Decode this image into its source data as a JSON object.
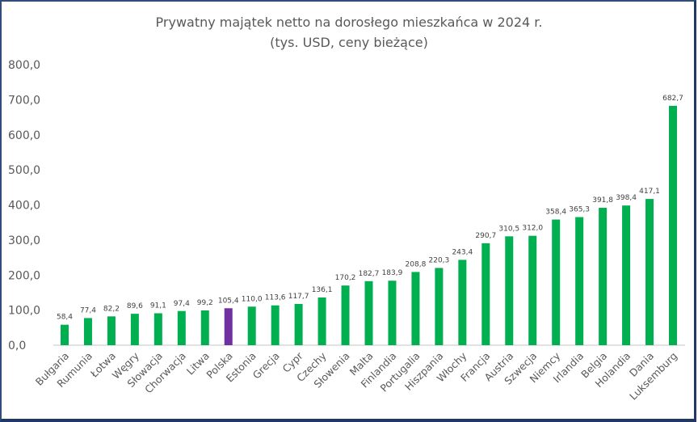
{
  "chart_data": {
    "type": "bar",
    "title": "Prywatny majątek netto na dorosłego mieszkańca w 2024 r.",
    "subtitle": "(tys. USD, ceny bieżące)",
    "xlabel": "",
    "ylabel": "",
    "ylim": [
      0,
      800
    ],
    "yticks": [
      "0,0",
      "100,0",
      "200,0",
      "300,0",
      "400,0",
      "500,0",
      "600,0",
      "700,0",
      "800,0"
    ],
    "grid": false,
    "categories": [
      "Bułgaria",
      "Rumunia",
      "Łotwa",
      "Węgry",
      "Słowacja",
      "Chorwacja",
      "Litwa",
      "Polska",
      "Estonia",
      "Grecja",
      "Cypr",
      "Czechy",
      "Słowenia",
      "Malta",
      "Finlandia",
      "Portugalia",
      "Hiszpania",
      "Włochy",
      "Francja",
      "Austria",
      "Szwecja",
      "Niemcy",
      "Irlandia",
      "Belgia",
      "Holandia",
      "Dania",
      "Luksemburg"
    ],
    "values": [
      58.4,
      77.4,
      82.2,
      89.6,
      91.1,
      97.4,
      99.2,
      105.4,
      110.0,
      113.6,
      117.7,
      136.1,
      170.2,
      182.7,
      183.9,
      208.8,
      220.3,
      243.4,
      290.7,
      310.5,
      312.0,
      358.4,
      365.3,
      391.8,
      398.4,
      417.1,
      682.7
    ],
    "data_labels": [
      "58,4",
      "77,4",
      "82,2",
      "89,6",
      "91,1",
      "97,4",
      "99,2",
      "105,4",
      "110,0",
      "113,6",
      "117,7",
      "136,1",
      "170,2",
      "182,7",
      "183,9",
      "208,8",
      "220,3",
      "243,4",
      "290,7",
      "310,5",
      "312,0",
      "358,4",
      "365,3",
      "391,8",
      "398,4",
      "417,1",
      "682,7"
    ],
    "colors": {
      "default": "#00b050",
      "highlight": "#7030a0",
      "highlight_category": "Polska"
    }
  }
}
